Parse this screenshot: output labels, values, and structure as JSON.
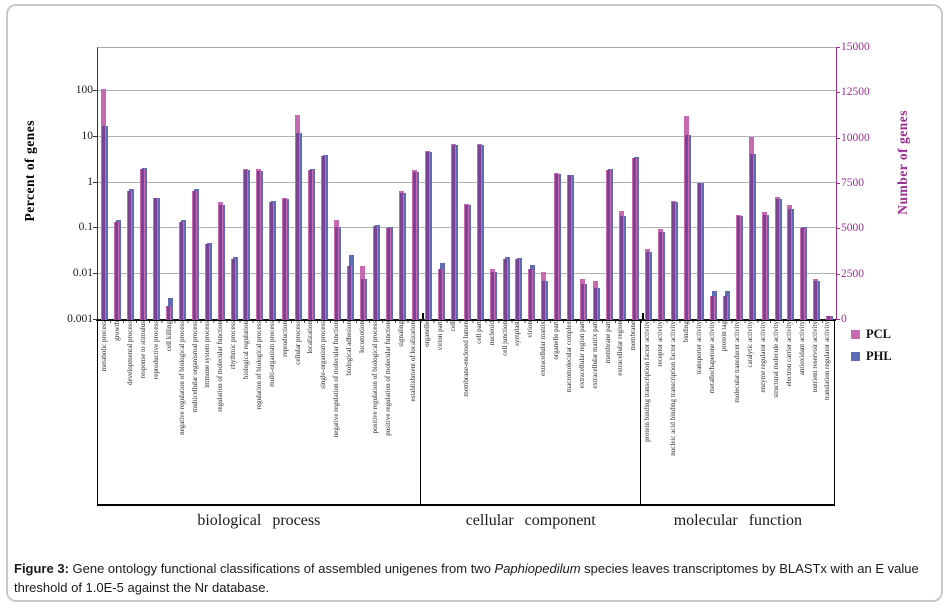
{
  "axes": {
    "left": {
      "title": "Percent of genes",
      "ticks": [
        {
          "label": "100",
          "log": 2
        },
        {
          "label": "10",
          "log": 1
        },
        {
          "label": "1",
          "log": 0
        },
        {
          "label": "0.1",
          "log": -1
        },
        {
          "label": "0.01",
          "log": -2
        },
        {
          "label": "0.001",
          "log": -3
        }
      ]
    },
    "right": {
      "title": "Number of genes",
      "max": 15000,
      "ticks": [
        0,
        2500,
        5000,
        7500,
        10000,
        12500,
        15000
      ]
    }
  },
  "legend": {
    "items": [
      {
        "label": "PCL",
        "color": "#c76ab2"
      },
      {
        "label": "PHL",
        "color": "#5d6cb3"
      }
    ]
  },
  "colors": {
    "pcl": "#c76ab2",
    "phl": "#5d6cb3",
    "overlap": "#7a4396",
    "right_axis": "#9b2d93",
    "grid": "#b3b3b3"
  },
  "chart_data": {
    "type": "bar",
    "y_scale": "log",
    "ylim": [
      0.001,
      870
    ],
    "grid": "horizontal",
    "ylabel_left": "Percent of genes",
    "ylabel_right": "Number of genes",
    "right_axis_ticks": [
      0,
      2500,
      5000,
      7500,
      10000,
      12500,
      15000
    ],
    "legend_position": "right",
    "categories": [
      "metabolic process",
      "growth",
      "developmental process",
      "response to stimulus",
      "reproductive process",
      "cell killing",
      "negative regulation of biological process",
      "multicellular organismal process",
      "immune system process",
      "regulation of molecular function",
      "rhythmic process",
      "biological regulation",
      "regulation of biological process",
      "multi-organism process",
      "reproduction",
      "cellular process",
      "localization",
      "single-organism process",
      "negative regulation of molecular function",
      "biological adhesion",
      "locomotion",
      "positive regulation of biological process",
      "positive regulation of molecular function",
      "signaling",
      "establishment of localization",
      "organelle",
      "virion part",
      "cell",
      "membrane-enclosed lumen",
      "cell part",
      "nucleoid",
      "cell junction",
      "symplast",
      "virion",
      "extracellular matrix",
      "organelle part",
      "macromolecular complex",
      "extracellular region part",
      "extracellular matrix part",
      "membrane part",
      "extracellular region",
      "membrane",
      "protein binding transcription factor activity",
      "receptor activity",
      "nucleic acid binding transcription factor activity",
      "binding",
      "transporter activity",
      "metallochaperone activity",
      "protein tag",
      "molecular transducer activity",
      "catalytic activity",
      "enzyme regulator activity",
      "structural molecule activity",
      "electron carrier activity",
      "antioxidant activity",
      "nutrient reservoir activity",
      "translation regulator activity"
    ],
    "series": [
      {
        "name": "PCL",
        "color": "#c76ab2",
        "values": [
          110,
          0.14,
          0.66,
          1.95,
          0.47,
          0.002,
          0.14,
          0.65,
          0.045,
          0.37,
          0.021,
          2.0,
          2.0,
          0.37,
          0.46,
          30,
          1.86,
          3.8,
          0.15,
          0.015,
          0.015,
          0.115,
          0.1,
          0.65,
          1.9,
          4.8,
          0.013,
          7.0,
          0.35,
          7.0,
          0.013,
          0.021,
          0.021,
          0.013,
          0.011,
          1.6,
          1.5,
          0.008,
          0.007,
          1.9,
          0.24,
          3.5,
          0.035,
          0.095,
          0.4,
          28,
          1.0,
          0.0033,
          0.0034,
          0.2,
          10,
          0.23,
          0.48,
          0.33,
          0.1,
          0.0077,
          0.0012
        ]
      },
      {
        "name": "PHL",
        "color": "#5d6cb3",
        "values": [
          17,
          0.15,
          0.72,
          2.1,
          0.46,
          0.003,
          0.15,
          0.72,
          0.048,
          0.33,
          0.024,
          1.9,
          1.8,
          0.4,
          0.44,
          12,
          1.95,
          4.0,
          0.105,
          0.026,
          0.008,
          0.12,
          0.105,
          0.6,
          1.7,
          4.6,
          0.018,
          6.8,
          0.33,
          6.8,
          0.011,
          0.024,
          0.023,
          0.016,
          0.007,
          1.55,
          1.45,
          0.006,
          0.005,
          2.0,
          0.19,
          3.6,
          0.031,
          0.085,
          0.38,
          11,
          1.0,
          0.0043,
          0.0043,
          0.19,
          4.3,
          0.2,
          0.44,
          0.27,
          0.105,
          0.007,
          0.0012
        ]
      }
    ],
    "category_groups": [
      {
        "label": "biological process",
        "start": 0,
        "count": 25
      },
      {
        "label": "cellular component",
        "start": 25,
        "count": 17
      },
      {
        "label": "molecular function",
        "start": 42,
        "count": 15
      }
    ]
  },
  "caption": {
    "label": "Figure 3:",
    "before_italic": " Gene ontology functional classifications of assembled unigenes from two ",
    "italic": "Paphiopedilum",
    "after_italic": " species leaves transcriptomes by BLASTx with an E value threshold of 1.0E-5 against the Nr database."
  }
}
